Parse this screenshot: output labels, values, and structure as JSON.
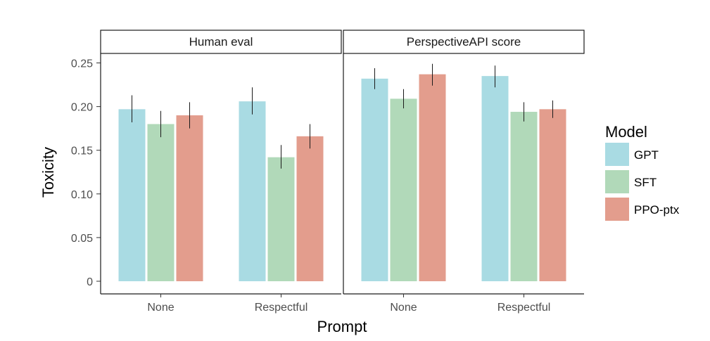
{
  "chart_data": {
    "type": "bar",
    "xlabel": "Prompt",
    "ylabel": "Toxicity",
    "ylim": [
      0,
      0.26
    ],
    "yticks": [
      0,
      0.05,
      0.1,
      0.15,
      0.2,
      0.25
    ],
    "ytick_labels": [
      "0",
      "0.05",
      "0.10",
      "0.15",
      "0.20",
      "0.25"
    ],
    "categories": [
      "None",
      "Respectful"
    ],
    "legend": {
      "title": "Model",
      "placement": "right",
      "entries": [
        {
          "name": "GPT",
          "color": "#a9dbe3"
        },
        {
          "name": "SFT",
          "color": "#b1d9b9"
        },
        {
          "name": "PPO-ptx",
          "color": "#e39d8d"
        }
      ]
    },
    "panels": [
      {
        "title": "Human eval",
        "series": [
          {
            "name": "GPT",
            "values": [
              0.197,
              0.206
            ],
            "err_low": [
              0.182,
              0.191
            ],
            "err_high": [
              0.213,
              0.222
            ]
          },
          {
            "name": "SFT",
            "values": [
              0.18,
              0.142
            ],
            "err_low": [
              0.165,
              0.129
            ],
            "err_high": [
              0.195,
              0.156
            ]
          },
          {
            "name": "PPO-ptx",
            "values": [
              0.19,
              0.166
            ],
            "err_low": [
              0.175,
              0.152
            ],
            "err_high": [
              0.205,
              0.18
            ]
          }
        ]
      },
      {
        "title": "PerspectiveAPI score",
        "series": [
          {
            "name": "GPT",
            "values": [
              0.232,
              0.235
            ],
            "err_low": [
              0.22,
              0.222
            ],
            "err_high": [
              0.244,
              0.247
            ]
          },
          {
            "name": "SFT",
            "values": [
              0.209,
              0.194
            ],
            "err_low": [
              0.198,
              0.183
            ],
            "err_high": [
              0.22,
              0.205
            ]
          },
          {
            "name": "PPO-ptx",
            "values": [
              0.237,
              0.197
            ],
            "err_low": [
              0.224,
              0.187
            ],
            "err_high": [
              0.249,
              0.207
            ]
          }
        ]
      }
    ]
  }
}
